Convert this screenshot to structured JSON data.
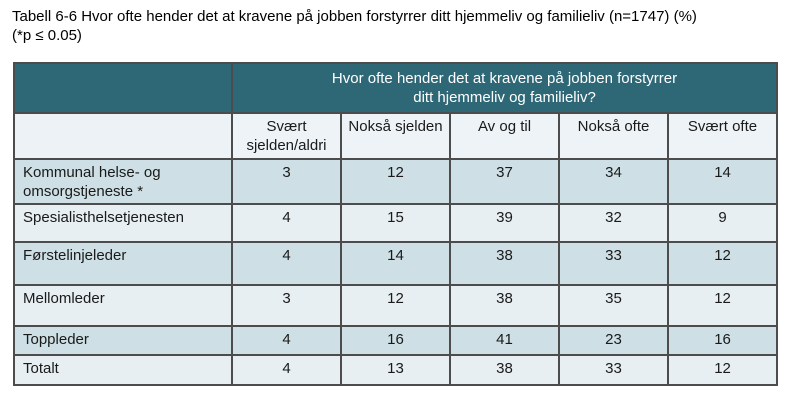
{
  "caption": {
    "line1": "Tabell 6-6 Hvor ofte hender det at kravene på jobben forstyrrer ditt hjemmeliv og familieliv (n=1747) (%)",
    "line2": "(*p ≤ 0.05)"
  },
  "table": {
    "question_header": {
      "line1": "Hvor ofte hender det at kravene på jobben forstyrrer",
      "line2": "ditt hjemmeliv og familieliv?"
    },
    "columns": [
      "Svært sjelden/aldri",
      "Nokså sjelden",
      "Av og til",
      "Nokså ofte",
      "Svært ofte"
    ],
    "rows": [
      {
        "label": "Kommunal helse- og omsorgstjeneste *",
        "values": [
          3,
          12,
          37,
          34,
          14
        ]
      },
      {
        "label": "Spesialisthelsetjenesten",
        "values": [
          4,
          15,
          39,
          32,
          9
        ]
      },
      {
        "label": "Førstelinjeleder",
        "values": [
          4,
          14,
          38,
          33,
          12
        ]
      },
      {
        "label": "Mellomleder",
        "values": [
          3,
          12,
          38,
          35,
          12
        ]
      },
      {
        "label": "Toppleder",
        "values": [
          4,
          16,
          41,
          23,
          16
        ]
      },
      {
        "label": "Totalt",
        "values": [
          4,
          13,
          38,
          33,
          12
        ]
      }
    ]
  },
  "colors": {
    "header_teal": "#2e6877",
    "header_text": "#ffffff",
    "row_shaded": "#cee0e6",
    "row_light": "#e7eff2",
    "column_header_bg": "#edf3f6",
    "border": "#4c4c4c"
  }
}
